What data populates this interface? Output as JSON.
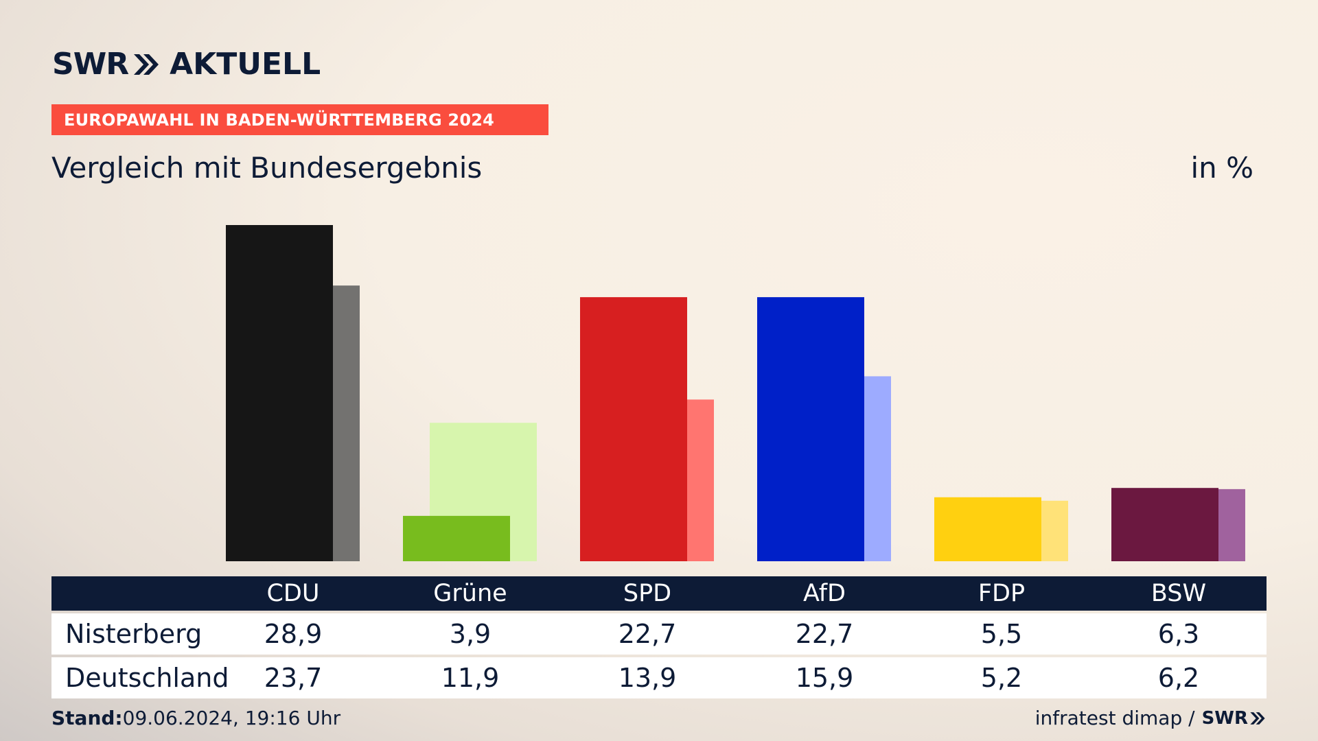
{
  "header": {
    "logo_left": "SWR",
    "logo_right": "AKTUELL",
    "banner": "EUROPAWAHL IN BADEN-WÜRTTEMBERG 2024",
    "subtitle": "Vergleich mit Bundesergebnis",
    "unit": "in %"
  },
  "colors": {
    "banner": "#fa4d3e",
    "navy": "#0d1b36"
  },
  "chart_data": {
    "type": "bar",
    "title": "Vergleich mit Bundesergebnis",
    "ylabel": "in %",
    "ylim": [
      0,
      28.9
    ],
    "categories": [
      "CDU",
      "Grüne",
      "SPD",
      "AfD",
      "FDP",
      "BSW"
    ],
    "series": [
      {
        "name": "Nisterberg",
        "values": [
          28.9,
          3.9,
          22.7,
          22.7,
          5.5,
          6.3
        ],
        "labels": [
          "28,9",
          "3,9",
          "22,7",
          "22,7",
          "5,5",
          "6,3"
        ],
        "colors": [
          "#161616",
          "#78bc1e",
          "#d71f20",
          "#0020c8",
          "#ffd010",
          "#6b1840"
        ]
      },
      {
        "name": "Deutschland",
        "values": [
          23.7,
          11.9,
          13.9,
          15.9,
          5.2,
          6.2
        ],
        "labels": [
          "23,7",
          "11,9",
          "13,9",
          "15,9",
          "5,2",
          "6,2"
        ],
        "colors": [
          "#737270",
          "#d7f5ad",
          "#ff7570",
          "#9dabff",
          "#ffe278",
          "#a0629e"
        ]
      }
    ]
  },
  "footer": {
    "stand_label": "Stand:",
    "stand_value": "09.06.2024, 19:16 Uhr",
    "source": "infratest dimap /",
    "source_logo": "SWR"
  }
}
